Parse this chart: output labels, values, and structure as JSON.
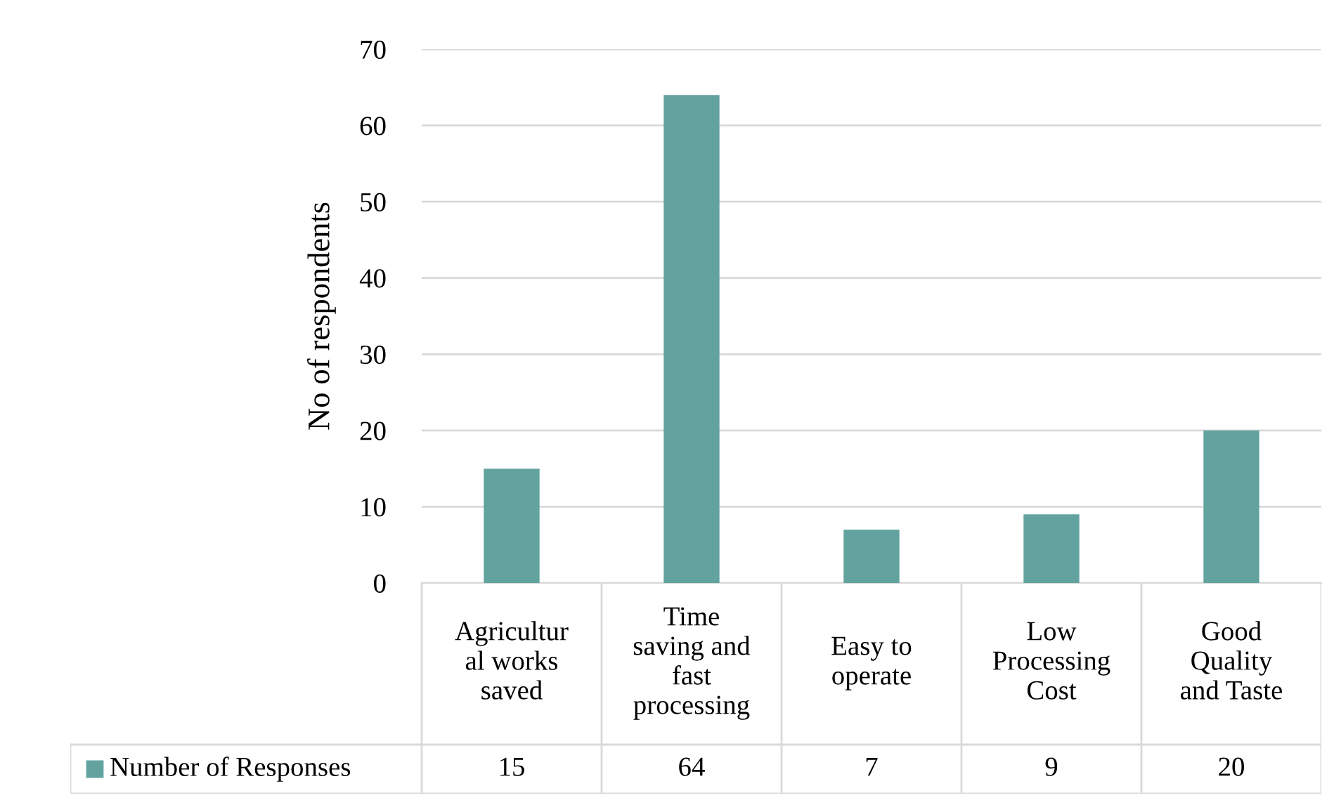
{
  "chart_data": {
    "type": "bar",
    "ylabel": "No of respondents",
    "categories": [
      "Agricultur\nal works\nsaved",
      "Time\nsaving and\nfast\nprocessing",
      "Easy to\noperate",
      "Low\nProcessing\nCost",
      "Good\nQuality\nand Taste"
    ],
    "series": [
      {
        "name": "Number of Responses",
        "color": "#62a39f",
        "values": [
          15,
          64,
          7,
          9,
          20
        ]
      }
    ],
    "ylim": [
      0,
      70
    ],
    "yticks": [
      0,
      10,
      20,
      30,
      40,
      50,
      60,
      70
    ],
    "grid": "y",
    "data_labels": true,
    "legend": "bottom"
  }
}
